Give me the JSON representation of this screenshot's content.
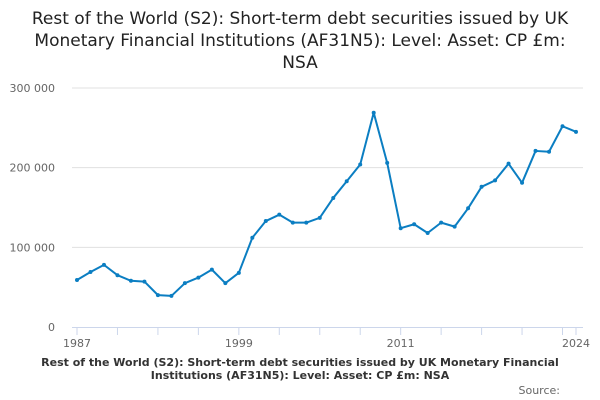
{
  "chart_data": {
    "type": "line",
    "title": "Rest of the World (S2): Short-term debt securities issued by UK Monetary Financial Institutions (AF31N5): Level: Asset: CP £m: NSA",
    "x": [
      1987,
      1988,
      1989,
      1990,
      1991,
      1992,
      1993,
      1994,
      1995,
      1996,
      1997,
      1998,
      1999,
      2000,
      2001,
      2002,
      2003,
      2004,
      2005,
      2006,
      2007,
      2008,
      2009,
      2010,
      2011,
      2012,
      2013,
      2014,
      2015,
      2016,
      2017,
      2018,
      2019,
      2020,
      2021,
      2022,
      2023,
      2024
    ],
    "values": [
      59000,
      69000,
      78000,
      65000,
      58000,
      57000,
      40000,
      39000,
      55000,
      62000,
      72000,
      55000,
      68000,
      112000,
      133000,
      141000,
      131000,
      131000,
      137000,
      162000,
      183000,
      204000,
      269000,
      206000,
      124000,
      129000,
      118000,
      131000,
      126000,
      149000,
      176000,
      184000,
      205000,
      181000,
      221000,
      220000,
      252000,
      245000
    ],
    "ylim": [
      0,
      300000
    ],
    "yticks": [
      0,
      100000,
      200000,
      300000
    ],
    "ytick_labels": [
      "0",
      "100 000",
      "200 000",
      "300 000"
    ],
    "xtick_labels": [
      "1987",
      "1999",
      "2011",
      "2024"
    ],
    "grid": true,
    "line_color": "#0b7ec2",
    "footer": "Rest of the World (S2): Short-term debt securities issued by UK Monetary Financial Institutions (AF31N5): Level: Asset: CP £m: NSA",
    "source": "Source:"
  }
}
